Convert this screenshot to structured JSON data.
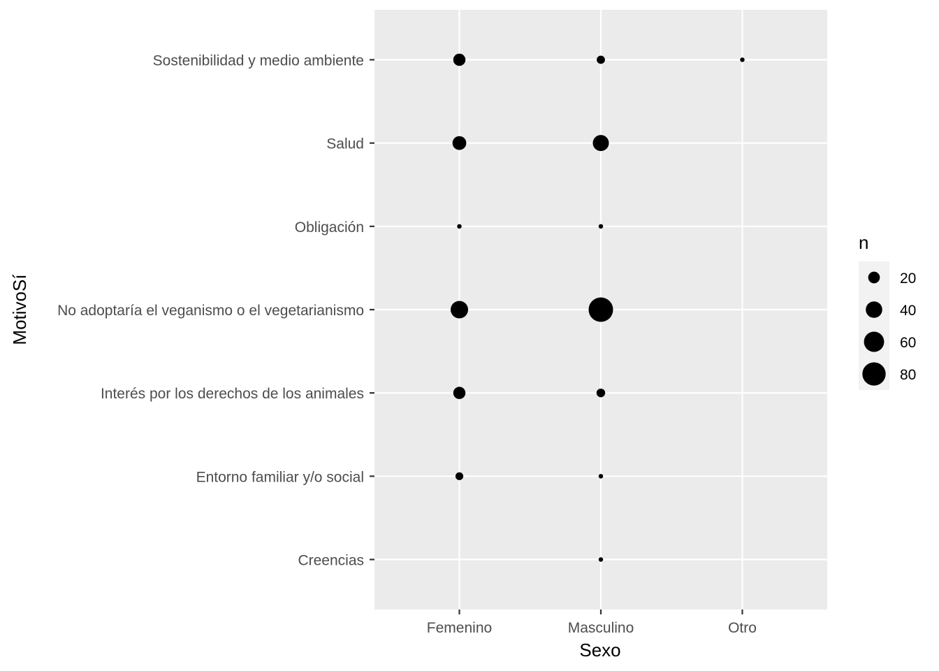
{
  "chart_data": {
    "type": "scatter",
    "title": "",
    "xlabel": "Sexo",
    "ylabel": "MotivoSí",
    "x_categories": [
      "Femenino",
      "Masculino",
      "Otro"
    ],
    "y_categories": [
      "Creencias",
      "Entorno familiar y/o social",
      "Interés por los derechos de los animales",
      "No adoptaría el veganismo o el vegetarianismo",
      "Obligación",
      "Salud",
      "Sostenibilidad y medio ambiente"
    ],
    "points": [
      {
        "x": "Femenino",
        "y": "Sostenibilidad y medio ambiente",
        "n": 22
      },
      {
        "x": "Masculino",
        "y": "Sostenibilidad y medio ambiente",
        "n": 10
      },
      {
        "x": "Otro",
        "y": "Sostenibilidad y medio ambiente",
        "n": 3
      },
      {
        "x": "Femenino",
        "y": "Salud",
        "n": 28
      },
      {
        "x": "Masculino",
        "y": "Salud",
        "n": 38
      },
      {
        "x": "Femenino",
        "y": "Obligación",
        "n": 3
      },
      {
        "x": "Masculino",
        "y": "Obligación",
        "n": 3
      },
      {
        "x": "Femenino",
        "y": "No adoptaría el veganismo o el vegetarianismo",
        "n": 45
      },
      {
        "x": "Masculino",
        "y": "No adoptaría el veganismo o el vegetarianismo",
        "n": 88
      },
      {
        "x": "Femenino",
        "y": "Interés por los derechos de los animales",
        "n": 22
      },
      {
        "x": "Masculino",
        "y": "Interés por los derechos de los animales",
        "n": 11
      },
      {
        "x": "Femenino",
        "y": "Entorno familiar y/o social",
        "n": 9
      },
      {
        "x": "Masculino",
        "y": "Entorno familiar y/o social",
        "n": 3
      },
      {
        "x": "Masculino",
        "y": "Creencias",
        "n": 3
      }
    ],
    "legend": {
      "title": "n",
      "placement": "right",
      "breaks": [
        20,
        40,
        60,
        80
      ]
    },
    "grid": true,
    "colors": {
      "panel": "#ebebeb",
      "grid": "#ffffff",
      "point": "#000000"
    }
  }
}
